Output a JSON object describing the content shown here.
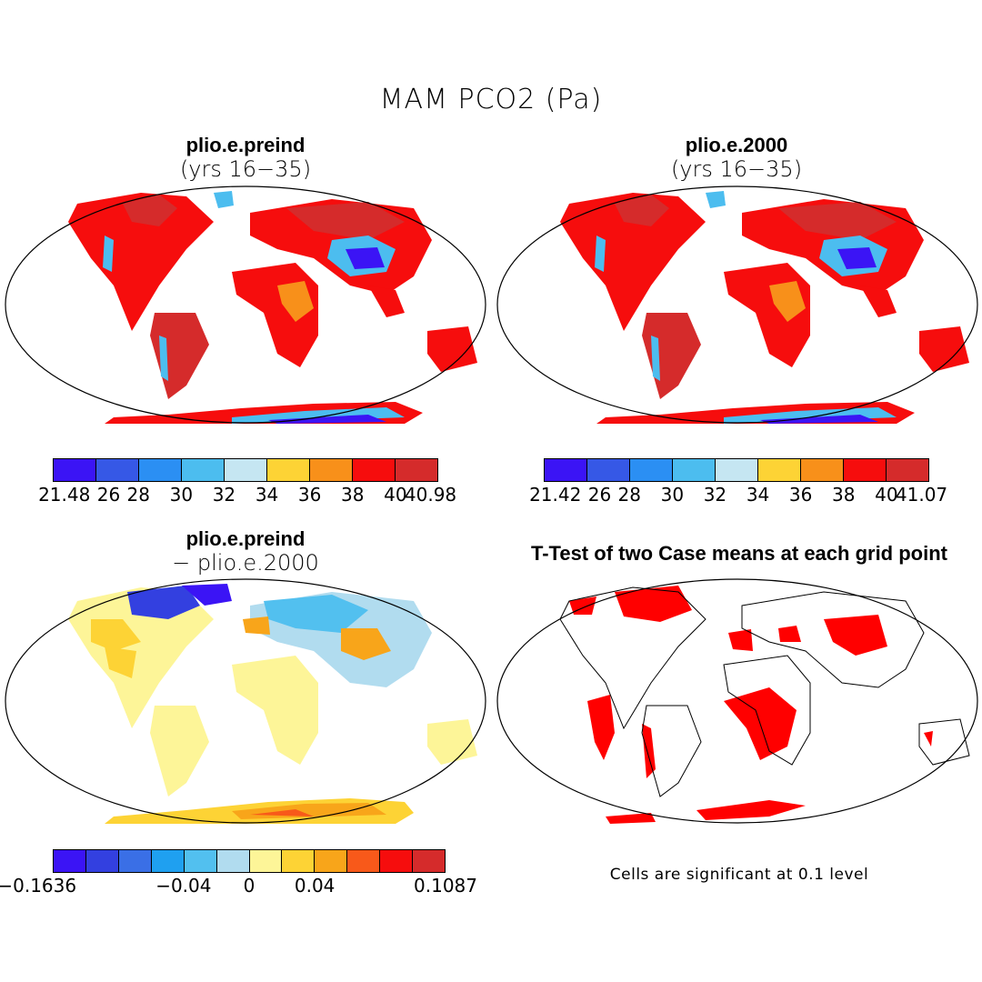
{
  "figure": {
    "title": "MAM PCO2 (Pa)"
  },
  "panels": [
    {
      "id": "top-left",
      "title": "plio.e.preind",
      "subtitle": "(yrs 16−35)",
      "colorbar": {
        "colors": [
          "#3b14f5",
          "#3658e6",
          "#2b8ff3",
          "#4cbdef",
          "#c5e6f2",
          "#fdd335",
          "#f8901a",
          "#f60d0d",
          "#d52b2b"
        ],
        "labels": [
          "21.48",
          "26",
          "28",
          "30",
          "32",
          "34",
          "36",
          "38",
          "40",
          "40.98"
        ]
      }
    },
    {
      "id": "top-right",
      "title": "plio.e.2000",
      "subtitle": "(yrs 16−35)",
      "colorbar": {
        "colors": [
          "#3b14f5",
          "#3658e6",
          "#2b8ff3",
          "#4cbdef",
          "#c5e6f2",
          "#fdd335",
          "#f8901a",
          "#f60d0d",
          "#d52b2b"
        ],
        "labels": [
          "21.42",
          "26",
          "28",
          "30",
          "32",
          "34",
          "36",
          "38",
          "40",
          "41.07"
        ]
      }
    },
    {
      "id": "bottom-left",
      "title": "plio.e.preind",
      "subtitle": "− plio.e.2000",
      "colorbar": {
        "colors": [
          "#3b14f5",
          "#3340e0",
          "#3a6fe6",
          "#1fa0f0",
          "#52c0ef",
          "#b1dcef",
          "#fdf598",
          "#fdd335",
          "#f8a51a",
          "#f8591a",
          "#f60d0d",
          "#d52b2b"
        ],
        "labels": [
          "−0.1636",
          "−0.04",
          "0",
          "0.04",
          "0.1087"
        ]
      }
    },
    {
      "id": "bottom-right",
      "title": "T-Test of two Case means at each grid point",
      "note": "Cells are significant at 0.1 level"
    }
  ]
}
